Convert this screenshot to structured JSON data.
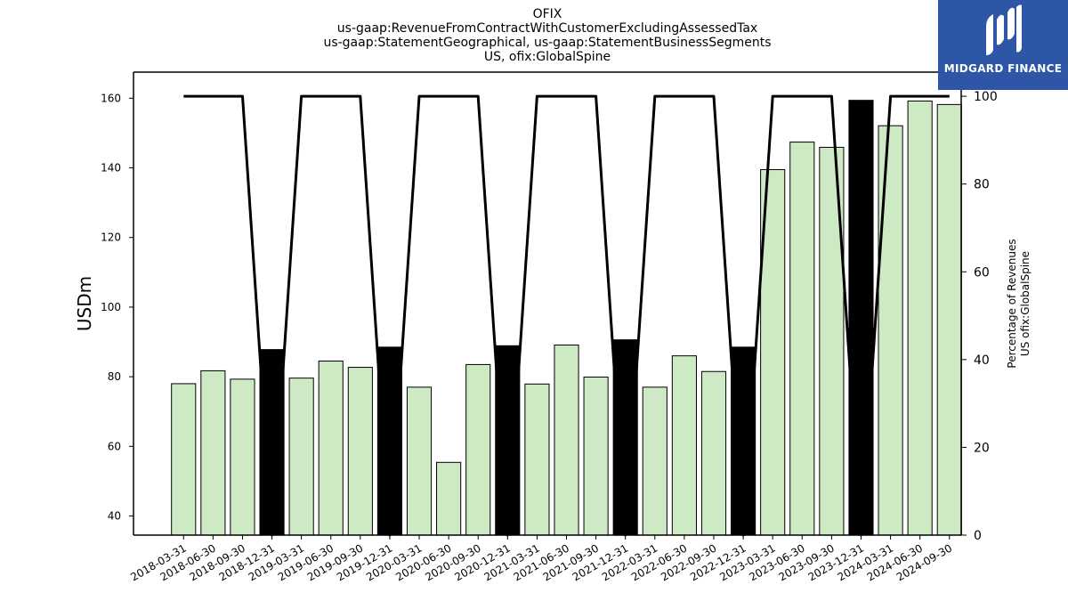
{
  "logo": {
    "text": "MIDGARD FINANCE",
    "icon": "midgard-logo-icon",
    "color": "#2d57a6"
  },
  "chart_data": {
    "type": "bar",
    "title_lines": [
      "OFIX",
      "us-gaap:RevenueFromContractWithCustomerExcludingAssessedTax",
      "us-gaap:StatementGeographical, us-gaap:StatementBusinessSegments",
      "US, ofix:GlobalSpine"
    ],
    "ylabel": "USDm",
    "y2label_lines": [
      "Percentage of Revenues",
      "US ofix:GlobalSpine"
    ],
    "ylim": [
      34.5,
      167.5
    ],
    "y_ticks": [
      40,
      60,
      80,
      100,
      120,
      140,
      160
    ],
    "y2lim": [
      0,
      105.5
    ],
    "y2_ticks": [
      0,
      20,
      40,
      60,
      80,
      100
    ],
    "categories": [
      "2018-03-31",
      "2018-06-30",
      "2018-09-30",
      "2018-12-31",
      "2019-03-31",
      "2019-06-30",
      "2019-09-30",
      "2019-12-31",
      "2020-03-31",
      "2020-06-30",
      "2020-09-30",
      "2020-12-31",
      "2021-03-31",
      "2021-06-30",
      "2021-09-30",
      "2021-12-31",
      "2022-03-31",
      "2022-06-30",
      "2022-09-30",
      "2022-12-31",
      "2023-03-31",
      "2023-06-30",
      "2023-09-30",
      "2023-12-31",
      "2024-03-31",
      "2024-06-30",
      "2024-09-30"
    ],
    "series": [
      {
        "type": "bar",
        "values": [
          78.0,
          81.7,
          79.3,
          87.8,
          79.6,
          84.5,
          82.7,
          88.5,
          77.0,
          55.4,
          83.5,
          88.9,
          77.9,
          89.1,
          79.9,
          90.6,
          77.0,
          86.0,
          81.5,
          88.5,
          139.5,
          147.4,
          145.9,
          159.4,
          152.1,
          159.2,
          158.2
        ]
      },
      {
        "type": "line",
        "axis": "right",
        "values": [
          100,
          100,
          100,
          0,
          100,
          100,
          100,
          0,
          100,
          100,
          100,
          0,
          100,
          100,
          100,
          0,
          100,
          100,
          100,
          0,
          100,
          100,
          100,
          0,
          100,
          100,
          100
        ]
      }
    ],
    "colors": {
      "bar": "#cdeac5",
      "bar_q4": "#000000",
      "line": "#000000"
    },
    "grid": false
  }
}
